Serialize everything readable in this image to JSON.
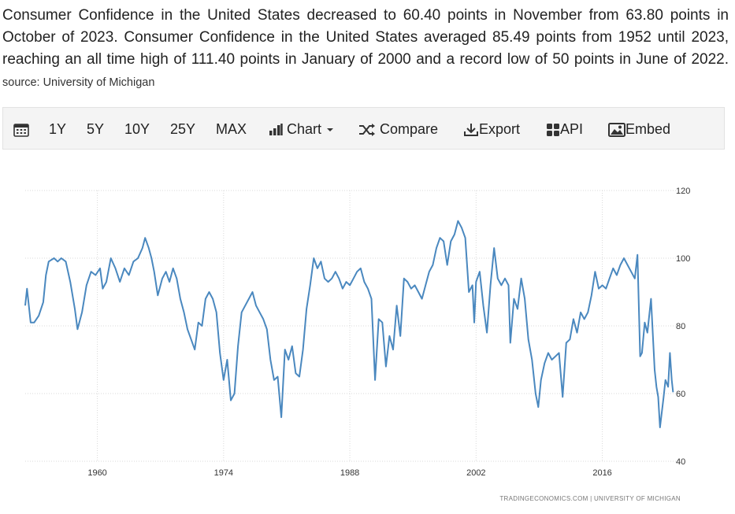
{
  "description": {
    "text": "Consumer Confidence in the United States decreased to 60.40 points in November from 63.80 points in October of 2023. Consumer Confidence in the United States averaged 85.49 points from 1952 until 2023, reaching an all time high of 111.40 points in January of 2000 and a record low of 50 points in June of 2022.",
    "source": "source: University of Michigan"
  },
  "toolbar": {
    "ranges": [
      "1Y",
      "5Y",
      "10Y",
      "25Y",
      "MAX"
    ],
    "chart_label": "Chart",
    "compare_label": "Compare",
    "export_label": "Export",
    "api_label": "API",
    "embed_label": "Embed"
  },
  "colors": {
    "line": "#4a88bf",
    "grid": "#d9d9d9",
    "toolbar_bg": "#f4f4f4"
  },
  "credit": "TRADINGECONOMICS.COM  |  UNIVERSITY OF MICHIGAN",
  "chart_data": {
    "type": "line",
    "title": "Consumer Confidence in the United States",
    "xlabel": "",
    "ylabel": "",
    "xlim": [
      1952,
      2023.9
    ],
    "ylim": [
      40,
      120
    ],
    "x_ticks": [
      1960,
      1974,
      1988,
      2002,
      2016
    ],
    "y_ticks": [
      40,
      60,
      80,
      100,
      120
    ],
    "series": [
      {
        "name": "Consumer Confidence",
        "points": [
          [
            1952.0,
            86
          ],
          [
            1952.2,
            91
          ],
          [
            1952.6,
            81
          ],
          [
            1953.0,
            81
          ],
          [
            1953.5,
            83
          ],
          [
            1954.0,
            87
          ],
          [
            1954.3,
            95
          ],
          [
            1954.6,
            99
          ],
          [
            1955.2,
            100
          ],
          [
            1955.6,
            99
          ],
          [
            1956.0,
            100
          ],
          [
            1956.5,
            99
          ],
          [
            1957.0,
            93
          ],
          [
            1957.5,
            85
          ],
          [
            1957.8,
            79
          ],
          [
            1958.3,
            84
          ],
          [
            1958.8,
            92
          ],
          [
            1959.3,
            96
          ],
          [
            1959.8,
            95
          ],
          [
            1960.3,
            97
          ],
          [
            1960.6,
            91
          ],
          [
            1961.0,
            93
          ],
          [
            1961.5,
            100
          ],
          [
            1962.0,
            97
          ],
          [
            1962.5,
            93
          ],
          [
            1963.0,
            97
          ],
          [
            1963.5,
            95
          ],
          [
            1964.0,
            99
          ],
          [
            1964.5,
            100
          ],
          [
            1965.0,
            103
          ],
          [
            1965.3,
            106
          ],
          [
            1965.7,
            103
          ],
          [
            1966.0,
            100
          ],
          [
            1966.3,
            96
          ],
          [
            1966.7,
            89
          ],
          [
            1967.2,
            94
          ],
          [
            1967.6,
            96
          ],
          [
            1968.0,
            93
          ],
          [
            1968.4,
            97
          ],
          [
            1968.8,
            94
          ],
          [
            1969.2,
            88
          ],
          [
            1969.6,
            84
          ],
          [
            1970.0,
            79
          ],
          [
            1970.4,
            76
          ],
          [
            1970.8,
            73
          ],
          [
            1971.2,
            81
          ],
          [
            1971.6,
            80
          ],
          [
            1972.0,
            88
          ],
          [
            1972.4,
            90
          ],
          [
            1972.8,
            88
          ],
          [
            1973.2,
            84
          ],
          [
            1973.6,
            72
          ],
          [
            1974.0,
            64
          ],
          [
            1974.4,
            70
          ],
          [
            1974.8,
            58
          ],
          [
            1975.2,
            60
          ],
          [
            1975.6,
            74
          ],
          [
            1976.0,
            84
          ],
          [
            1976.4,
            86
          ],
          [
            1976.8,
            88
          ],
          [
            1977.2,
            90
          ],
          [
            1977.6,
            86
          ],
          [
            1978.0,
            84
          ],
          [
            1978.4,
            82
          ],
          [
            1978.8,
            79
          ],
          [
            1979.2,
            70
          ],
          [
            1979.6,
            64
          ],
          [
            1980.0,
            65
          ],
          [
            1980.4,
            53
          ],
          [
            1980.8,
            73
          ],
          [
            1981.2,
            70
          ],
          [
            1981.6,
            74
          ],
          [
            1982.0,
            66
          ],
          [
            1982.4,
            65
          ],
          [
            1982.8,
            73
          ],
          [
            1983.2,
            85
          ],
          [
            1983.6,
            92
          ],
          [
            1984.0,
            100
          ],
          [
            1984.4,
            97
          ],
          [
            1984.8,
            99
          ],
          [
            1985.2,
            94
          ],
          [
            1985.6,
            93
          ],
          [
            1986.0,
            94
          ],
          [
            1986.4,
            96
          ],
          [
            1986.8,
            94
          ],
          [
            1987.2,
            91
          ],
          [
            1987.6,
            93
          ],
          [
            1988.0,
            92
          ],
          [
            1988.4,
            94
          ],
          [
            1988.8,
            96
          ],
          [
            1989.2,
            97
          ],
          [
            1989.6,
            93
          ],
          [
            1990.0,
            91
          ],
          [
            1990.4,
            88
          ],
          [
            1990.8,
            64
          ],
          [
            1991.2,
            82
          ],
          [
            1991.6,
            81
          ],
          [
            1992.0,
            68
          ],
          [
            1992.4,
            77
          ],
          [
            1992.8,
            73
          ],
          [
            1993.2,
            86
          ],
          [
            1993.6,
            77
          ],
          [
            1994.0,
            94
          ],
          [
            1994.4,
            93
          ],
          [
            1994.8,
            91
          ],
          [
            1995.2,
            92
          ],
          [
            1995.6,
            90
          ],
          [
            1996.0,
            88
          ],
          [
            1996.4,
            92
          ],
          [
            1996.8,
            96
          ],
          [
            1997.2,
            98
          ],
          [
            1997.6,
            103
          ],
          [
            1998.0,
            106
          ],
          [
            1998.4,
            105
          ],
          [
            1998.8,
            98
          ],
          [
            1999.2,
            105
          ],
          [
            1999.6,
            107
          ],
          [
            2000.0,
            111
          ],
          [
            2000.4,
            109
          ],
          [
            2000.8,
            106
          ],
          [
            2001.2,
            90
          ],
          [
            2001.6,
            92
          ],
          [
            2001.8,
            81
          ],
          [
            2002.0,
            93
          ],
          [
            2002.4,
            96
          ],
          [
            2002.8,
            86
          ],
          [
            2003.2,
            78
          ],
          [
            2003.6,
            92
          ],
          [
            2004.0,
            103
          ],
          [
            2004.4,
            94
          ],
          [
            2004.8,
            92
          ],
          [
            2005.2,
            94
          ],
          [
            2005.6,
            92
          ],
          [
            2005.8,
            75
          ],
          [
            2006.2,
            88
          ],
          [
            2006.6,
            85
          ],
          [
            2007.0,
            94
          ],
          [
            2007.4,
            88
          ],
          [
            2007.8,
            76
          ],
          [
            2008.2,
            70
          ],
          [
            2008.6,
            60
          ],
          [
            2008.9,
            56
          ],
          [
            2009.2,
            64
          ],
          [
            2009.6,
            69
          ],
          [
            2010.0,
            72
          ],
          [
            2010.4,
            70
          ],
          [
            2010.8,
            71
          ],
          [
            2011.2,
            72
          ],
          [
            2011.6,
            59
          ],
          [
            2012.0,
            75
          ],
          [
            2012.4,
            76
          ],
          [
            2012.8,
            82
          ],
          [
            2013.2,
            78
          ],
          [
            2013.6,
            84
          ],
          [
            2014.0,
            82
          ],
          [
            2014.4,
            84
          ],
          [
            2014.8,
            89
          ],
          [
            2015.2,
            96
          ],
          [
            2015.6,
            91
          ],
          [
            2016.0,
            92
          ],
          [
            2016.4,
            91
          ],
          [
            2016.8,
            94
          ],
          [
            2017.2,
            97
          ],
          [
            2017.6,
            95
          ],
          [
            2018.0,
            98
          ],
          [
            2018.4,
            100
          ],
          [
            2018.8,
            98
          ],
          [
            2019.2,
            96
          ],
          [
            2019.6,
            94
          ],
          [
            2019.9,
            101
          ],
          [
            2020.2,
            71
          ],
          [
            2020.4,
            72
          ],
          [
            2020.7,
            81
          ],
          [
            2021.0,
            78
          ],
          [
            2021.4,
            88
          ],
          [
            2021.8,
            67
          ],
          [
            2022.0,
            62
          ],
          [
            2022.2,
            59
          ],
          [
            2022.4,
            50
          ],
          [
            2022.8,
            59
          ],
          [
            2023.0,
            64
          ],
          [
            2023.3,
            62
          ],
          [
            2023.5,
            72
          ],
          [
            2023.7,
            64
          ],
          [
            2023.85,
            60.4
          ]
        ]
      }
    ]
  }
}
